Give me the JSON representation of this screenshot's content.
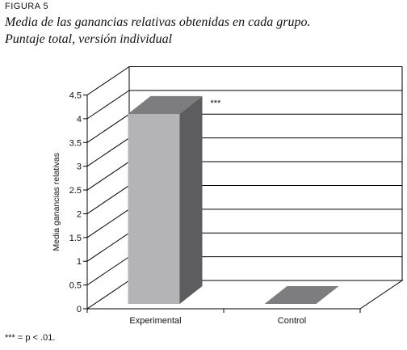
{
  "figure": {
    "label": "FIGURA 5",
    "title_line1": "Media de las ganancias relativas obtenidas en cada grupo.",
    "title_line2": "Puntaje total, versión individual",
    "footnote": "*** = p < .01."
  },
  "chart_data": {
    "type": "bar",
    "style": "3d",
    "categories": [
      "Experimental",
      "Control"
    ],
    "values": [
      4.0,
      0.0
    ],
    "annotations": [
      {
        "category": "Experimental",
        "text": "***"
      }
    ],
    "ylabel": "Media ganancias relativas",
    "xlabel": "",
    "ylim": [
      0,
      4.5
    ],
    "yticks": [
      "0",
      "0.5",
      "1",
      "1.5",
      "2",
      "2.5",
      "3",
      "3.5",
      "4",
      "4.5"
    ],
    "grid": true,
    "colors": {
      "bar_front": "#b4b4b6",
      "bar_top": "#7d7d7f",
      "bar_side": "#5d5d60"
    }
  }
}
